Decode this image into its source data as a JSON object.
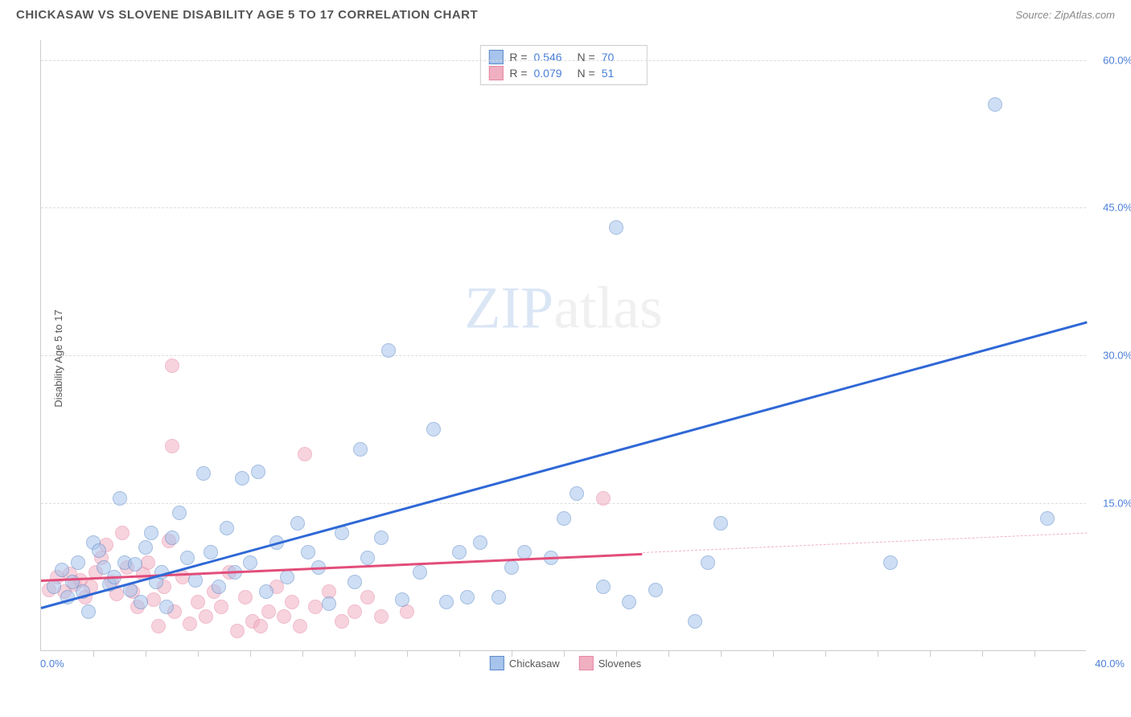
{
  "header": {
    "title": "CHICKASAW VS SLOVENE DISABILITY AGE 5 TO 17 CORRELATION CHART",
    "source": "Source: ZipAtlas.com"
  },
  "chart": {
    "type": "scatter",
    "ylabel": "Disability Age 5 to 17",
    "xlim": [
      0,
      40
    ],
    "ylim": [
      0,
      62
    ],
    "x_axis_start": "0.0%",
    "x_axis_end": "40.0%",
    "y_ticks": [
      {
        "v": 15,
        "label": "15.0%"
      },
      {
        "v": 30,
        "label": "30.0%"
      },
      {
        "v": 45,
        "label": "45.0%"
      },
      {
        "v": 60,
        "label": "60.0%"
      }
    ],
    "x_minor_ticks": [
      2,
      4,
      6,
      8,
      10,
      12,
      14,
      16,
      18,
      20,
      22,
      24,
      26,
      28,
      30,
      32,
      34,
      36,
      38
    ],
    "background_color": "#ffffff",
    "grid_color": "#dddddd",
    "marker_radius": 9,
    "marker_opacity": 0.55,
    "watermark": {
      "zip": "ZIP",
      "atlas": "atlas"
    },
    "series": [
      {
        "name": "Chickasaw",
        "fill": "#a7c4ec",
        "stroke": "#5b8ac9",
        "line_color": "#2f68d6",
        "R": "0.546",
        "N": "70",
        "trend": {
          "x1": 0,
          "y1": 4.5,
          "x2": 40,
          "y2": 33.5
        },
        "points": [
          [
            0.5,
            6.5
          ],
          [
            0.8,
            8.2
          ],
          [
            1.0,
            5.5
          ],
          [
            1.2,
            7.0
          ],
          [
            1.4,
            9.0
          ],
          [
            1.6,
            6.0
          ],
          [
            1.8,
            4.0
          ],
          [
            2.0,
            11.0
          ],
          [
            2.2,
            10.2
          ],
          [
            2.4,
            8.5
          ],
          [
            2.6,
            6.8
          ],
          [
            2.8,
            7.5
          ],
          [
            3.0,
            15.5
          ],
          [
            3.2,
            9.0
          ],
          [
            3.4,
            6.2
          ],
          [
            3.6,
            8.8
          ],
          [
            3.8,
            5.0
          ],
          [
            4.0,
            10.5
          ],
          [
            4.2,
            12.0
          ],
          [
            4.4,
            7.0
          ],
          [
            4.6,
            8.0
          ],
          [
            4.8,
            4.5
          ],
          [
            5.0,
            11.5
          ],
          [
            5.3,
            14.0
          ],
          [
            5.6,
            9.5
          ],
          [
            5.9,
            7.2
          ],
          [
            6.2,
            18.0
          ],
          [
            6.5,
            10.0
          ],
          [
            6.8,
            6.5
          ],
          [
            7.1,
            12.5
          ],
          [
            7.4,
            8.0
          ],
          [
            7.7,
            17.5
          ],
          [
            8.0,
            9.0
          ],
          [
            8.3,
            18.2
          ],
          [
            8.6,
            6.0
          ],
          [
            9.0,
            11.0
          ],
          [
            9.4,
            7.5
          ],
          [
            9.8,
            13.0
          ],
          [
            10.2,
            10.0
          ],
          [
            10.6,
            8.5
          ],
          [
            11.0,
            4.8
          ],
          [
            11.5,
            12.0
          ],
          [
            12.0,
            7.0
          ],
          [
            12.2,
            20.5
          ],
          [
            12.5,
            9.5
          ],
          [
            13.0,
            11.5
          ],
          [
            13.3,
            30.5
          ],
          [
            13.8,
            5.2
          ],
          [
            14.5,
            8.0
          ],
          [
            15.0,
            22.5
          ],
          [
            15.5,
            5.0
          ],
          [
            16.0,
            10.0
          ],
          [
            16.3,
            5.5
          ],
          [
            16.8,
            11.0
          ],
          [
            17.5,
            5.5
          ],
          [
            18.0,
            8.5
          ],
          [
            18.5,
            10.0
          ],
          [
            19.5,
            9.5
          ],
          [
            20.0,
            13.5
          ],
          [
            20.5,
            16.0
          ],
          [
            21.5,
            6.5
          ],
          [
            22.0,
            43.0
          ],
          [
            22.5,
            5.0
          ],
          [
            23.5,
            6.2
          ],
          [
            25.0,
            3.0
          ],
          [
            25.5,
            9.0
          ],
          [
            26.0,
            13.0
          ],
          [
            32.5,
            9.0
          ],
          [
            36.5,
            55.5
          ],
          [
            38.5,
            13.5
          ]
        ]
      },
      {
        "name": "Slovenes",
        "fill": "#f0b0c2",
        "stroke": "#e786a5",
        "line_color": "#e24d7a",
        "R": "0.079",
        "N": "51",
        "trend_solid": {
          "x1": 0,
          "y1": 7.3,
          "x2": 23,
          "y2": 10.0
        },
        "trend_dash": {
          "x1": 23,
          "y1": 10.0,
          "x2": 40,
          "y2": 12.0
        },
        "points": [
          [
            0.3,
            6.2
          ],
          [
            0.6,
            7.5
          ],
          [
            0.9,
            6.0
          ],
          [
            1.1,
            7.8
          ],
          [
            1.3,
            6.8
          ],
          [
            1.5,
            7.2
          ],
          [
            1.7,
            5.5
          ],
          [
            1.9,
            6.5
          ],
          [
            2.1,
            8.0
          ],
          [
            2.3,
            9.5
          ],
          [
            2.5,
            10.8
          ],
          [
            2.7,
            7.0
          ],
          [
            2.9,
            5.8
          ],
          [
            3.1,
            12.0
          ],
          [
            3.3,
            8.5
          ],
          [
            3.5,
            6.0
          ],
          [
            3.7,
            4.5
          ],
          [
            3.9,
            7.8
          ],
          [
            4.1,
            9.0
          ],
          [
            4.3,
            5.2
          ],
          [
            4.5,
            2.5
          ],
          [
            4.7,
            6.5
          ],
          [
            4.9,
            11.2
          ],
          [
            5.0,
            20.8
          ],
          [
            5.1,
            4.0
          ],
          [
            5.0,
            29.0
          ],
          [
            5.4,
            7.5
          ],
          [
            5.7,
            2.8
          ],
          [
            6.0,
            5.0
          ],
          [
            6.3,
            3.5
          ],
          [
            6.6,
            6.0
          ],
          [
            6.9,
            4.5
          ],
          [
            7.2,
            8.0
          ],
          [
            7.5,
            2.0
          ],
          [
            7.8,
            5.5
          ],
          [
            8.1,
            3.0
          ],
          [
            8.4,
            2.5
          ],
          [
            8.7,
            4.0
          ],
          [
            9.0,
            6.5
          ],
          [
            9.3,
            3.5
          ],
          [
            9.6,
            5.0
          ],
          [
            9.9,
            2.5
          ],
          [
            10.1,
            20.0
          ],
          [
            10.5,
            4.5
          ],
          [
            11.0,
            6.0
          ],
          [
            11.5,
            3.0
          ],
          [
            12.0,
            4.0
          ],
          [
            12.5,
            5.5
          ],
          [
            13.0,
            3.5
          ],
          [
            14.0,
            4.0
          ],
          [
            21.5,
            15.5
          ]
        ]
      }
    ]
  },
  "legend_stats_labels": {
    "R": "R =",
    "N": "N ="
  }
}
